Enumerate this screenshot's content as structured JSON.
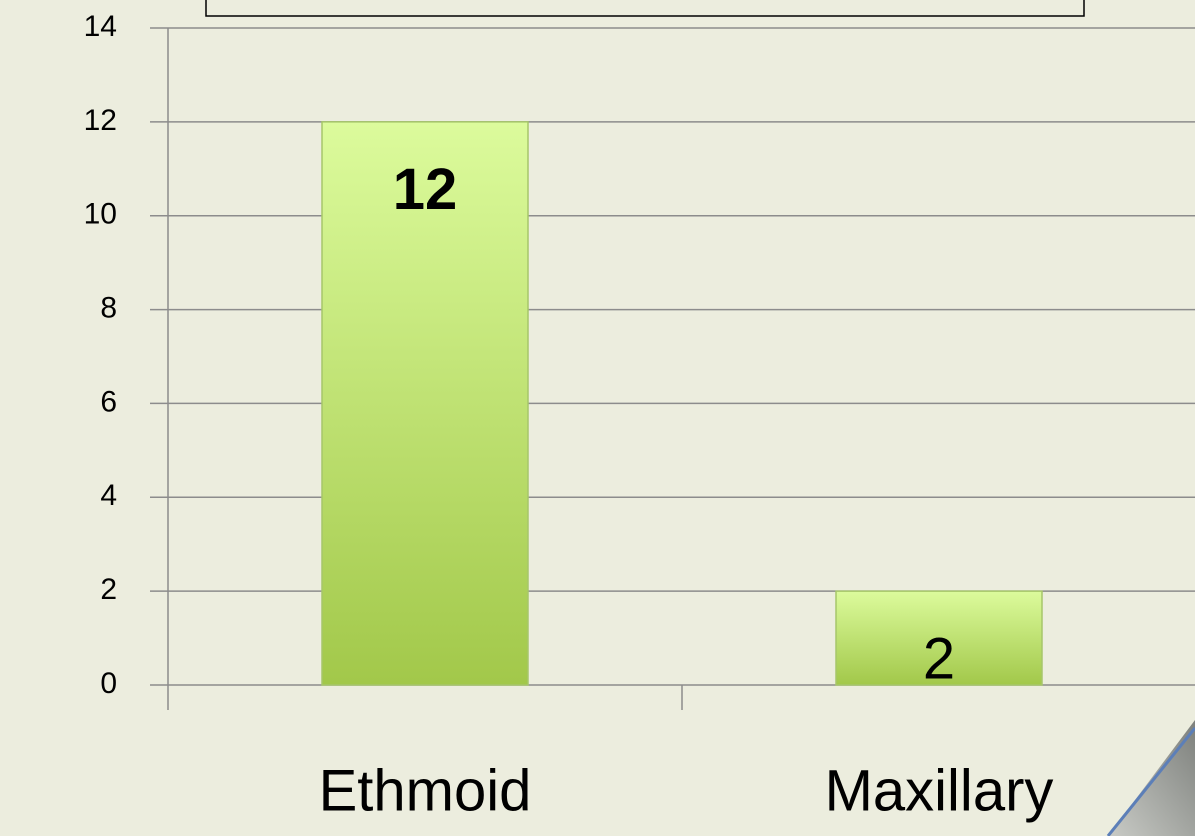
{
  "chart_data": {
    "type": "bar",
    "categories": [
      "Ethmoid",
      "Maxillary"
    ],
    "values": [
      12,
      2
    ],
    "color": "#b9dd6a",
    "ylim": [
      0,
      14
    ],
    "yticks": [
      0,
      2,
      4,
      6,
      8,
      10,
      12,
      14
    ],
    "grid": true
  }
}
